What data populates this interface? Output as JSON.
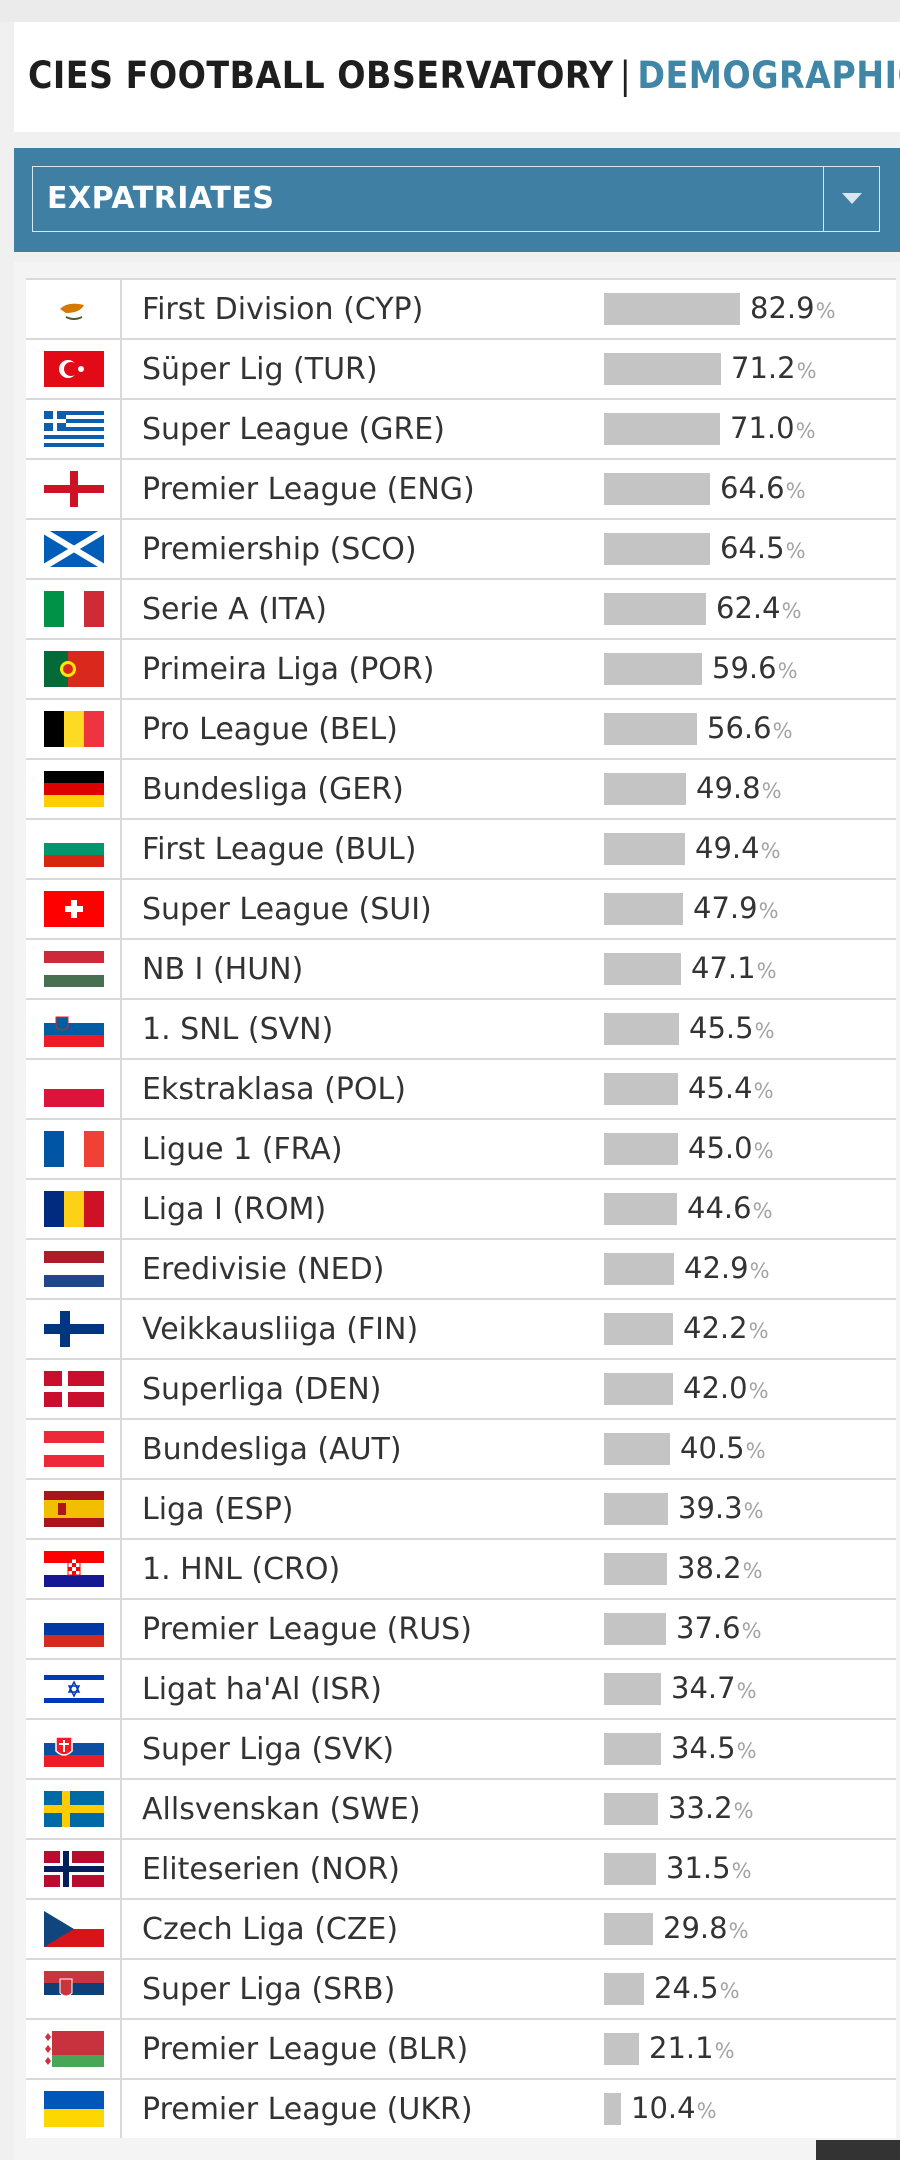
{
  "header": {
    "title": "CIES FOOTBALL OBSERVATORY",
    "separator": "|",
    "subtitle": "DEMOGRAPHIC"
  },
  "filter": {
    "selected": "EXPATRIATES",
    "dropdown_icon": "caret-down-icon"
  },
  "colors": {
    "accent": "#3f7fa4",
    "subtitle": "#3f86a7",
    "bar": "#c4c4c4",
    "row_border": "#d9d9d9"
  },
  "chart_data": {
    "type": "bar",
    "orientation": "horizontal",
    "value_suffix": "%",
    "xlim": [
      0,
      100
    ],
    "categories": [
      "First Division (CYP)",
      "Süper Lig (TUR)",
      "Super League (GRE)",
      "Premier League (ENG)",
      "Premiership (SCO)",
      "Serie A (ITA)",
      "Primeira Liga (POR)",
      "Pro League (BEL)",
      "Bundesliga (GER)",
      "First League (BUL)",
      "Super League (SUI)",
      "NB I (HUN)",
      "1. SNL (SVN)",
      "Ekstraklasa (POL)",
      "Ligue 1 (FRA)",
      "Liga I (ROM)",
      "Eredivisie (NED)",
      "Veikkausliiga (FIN)",
      "Superliga (DEN)",
      "Bundesliga (AUT)",
      "Liga (ESP)",
      "1. HNL (CRO)",
      "Premier League (RUS)",
      "Ligat ha'Al (ISR)",
      "Super Liga (SVK)",
      "Allsvenskan (SWE)",
      "Eliteserien (NOR)",
      "Czech Liga (CZE)",
      "Super Liga (SRB)",
      "Premier League (BLR)",
      "Premier League (UKR)"
    ],
    "values": [
      82.9,
      71.2,
      71.0,
      64.6,
      64.5,
      62.4,
      59.6,
      56.6,
      49.8,
      49.4,
      47.9,
      47.1,
      45.5,
      45.4,
      45.0,
      44.6,
      42.9,
      42.2,
      42.0,
      40.5,
      39.3,
      38.2,
      37.6,
      34.7,
      34.5,
      33.2,
      31.5,
      29.8,
      24.5,
      21.1,
      10.4
    ],
    "value_labels": [
      "82.9",
      "71.2",
      "71.0",
      "64.6",
      "64.5",
      "62.4",
      "59.6",
      "56.6",
      "49.8",
      "49.4",
      "47.9",
      "47.1",
      "45.5",
      "45.4",
      "45.0",
      "44.6",
      "42.9",
      "42.2",
      "42.0",
      "40.5",
      "39.3",
      "38.2",
      "37.6",
      "34.7",
      "34.5",
      "33.2",
      "31.5",
      "29.8",
      "24.5",
      "21.1",
      "10.4"
    ],
    "flags": [
      "CYP",
      "TUR",
      "GRE",
      "ENG",
      "SCO",
      "ITA",
      "POR",
      "BEL",
      "GER",
      "BUL",
      "SUI",
      "HUN",
      "SVN",
      "POL",
      "FRA",
      "ROM",
      "NED",
      "FIN",
      "DEN",
      "AUT",
      "ESP",
      "CRO",
      "RUS",
      "ISR",
      "SVK",
      "SWE",
      "NOR",
      "CZE",
      "SRB",
      "BLR",
      "UKR"
    ]
  }
}
